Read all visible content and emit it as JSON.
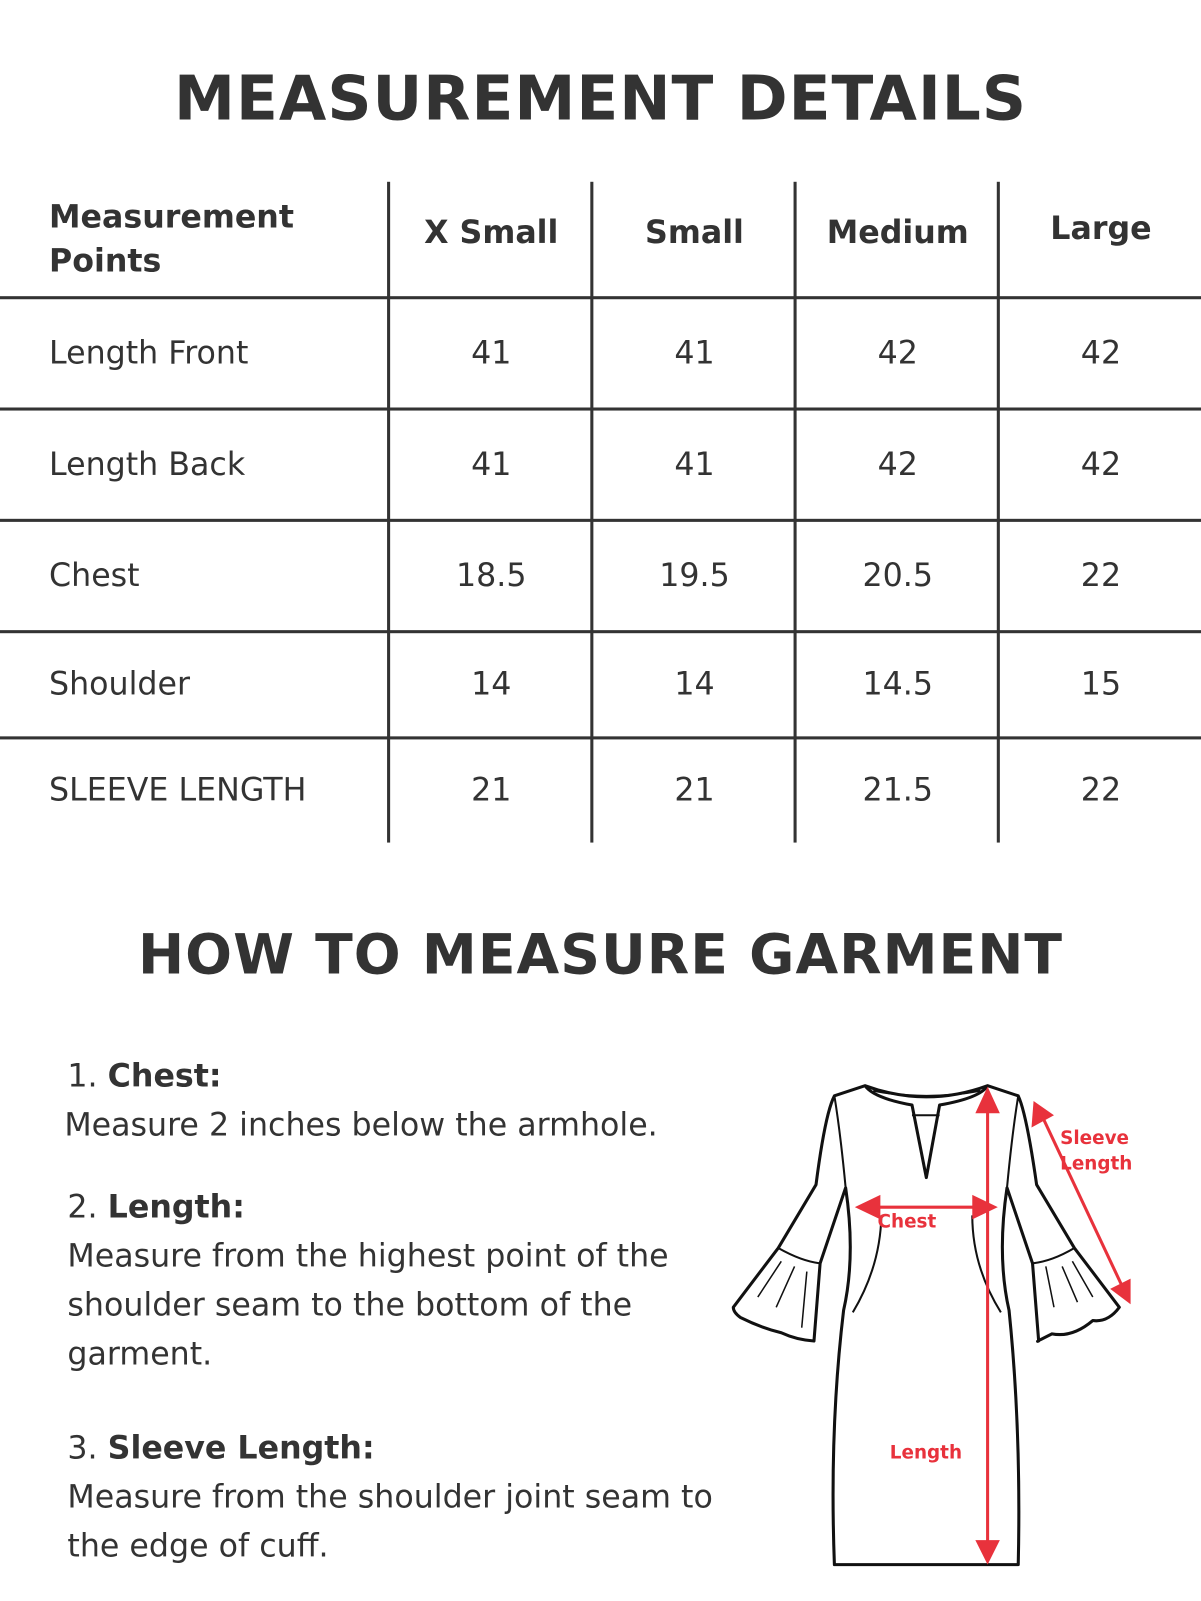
{
  "title": "MEASUREMENT DETAILS",
  "table": {
    "headers": [
      "Measurement Points",
      "X Small",
      "Small",
      "Medium",
      "Large"
    ],
    "rows": [
      {
        "label": "Length Front",
        "values": [
          "41",
          "41",
          "42",
          "42"
        ]
      },
      {
        "label": "Length Back",
        "values": [
          "41",
          "41",
          "42",
          "42"
        ]
      },
      {
        "label": "Chest",
        "values": [
          "18.5",
          "19.5",
          "20.5",
          "22"
        ]
      },
      {
        "label": "Shoulder",
        "values": [
          "14",
          "14",
          "14.5",
          "15"
        ]
      },
      {
        "label": "SLEEVE LENGTH",
        "values": [
          "21",
          "21",
          "21.5",
          "22"
        ]
      }
    ]
  },
  "how_to": {
    "title": "HOW TO MEASURE GARMENT",
    "steps": [
      {
        "num": "1.",
        "name": "Chest:",
        "text": "Measure 2 inches  below the armhole."
      },
      {
        "num": "2.",
        "name": "Length:",
        "text": "Measure from the highest point of the shoulder seam to the bottom of the garment."
      },
      {
        "num": "3.",
        "name": "Sleeve Length:",
        "text": "Measure from the shoulder joint seam to the edge of cuff."
      }
    ]
  },
  "diagram": {
    "labels": {
      "chest": "Chest",
      "length": "Length",
      "sleeve_1": "Sleeve",
      "sleeve_2": "Length"
    },
    "accent_color": "#e8323c"
  }
}
